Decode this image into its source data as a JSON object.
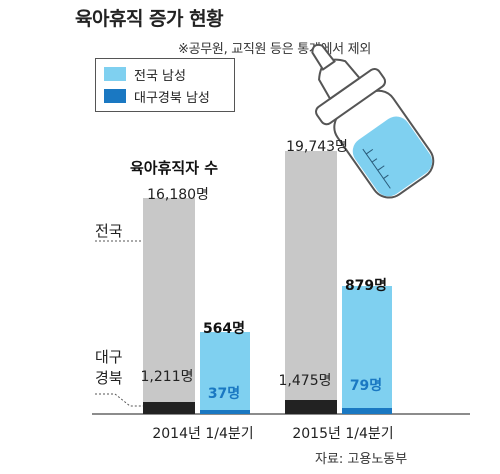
{
  "header": {
    "title": "육아휴직 증가 현황",
    "note": "※공무원, 교직원 등은 통계에서 제외"
  },
  "legend": [
    {
      "label": "전국 남성",
      "color": "#7fd0f0"
    },
    {
      "label": "대구경북 남성",
      "color": "#1a78c2"
    }
  ],
  "annotations": {
    "chart_label": "육아휴직자 수",
    "nation_label": "전국",
    "region_label_1": "대구",
    "region_label_2": "경북"
  },
  "source": "자료: 고용노동부",
  "colors": {
    "nation_gray": "#c8c8c8",
    "region_dark": "#222222",
    "national_male": "#7fd0f0",
    "region_male": "#1a78c2",
    "axis": "#666666"
  },
  "icon": "baby-bottle-icon",
  "chart_data": {
    "type": "bar",
    "categories": [
      "2014년 1/4분기",
      "2015년 1/4분기"
    ],
    "series": [
      {
        "name": "전국",
        "values": [
          16180,
          19743
        ],
        "labels": [
          "16,180명",
          "19,743명"
        ]
      },
      {
        "name": "대구경북",
        "values": [
          1211,
          1475
        ],
        "labels": [
          "1,211명",
          "1,475명"
        ]
      },
      {
        "name": "전국 남성",
        "values": [
          564,
          879
        ],
        "labels": [
          "564명",
          "879명"
        ]
      },
      {
        "name": "대구경북 남성",
        "values": [
          37,
          79
        ],
        "labels": [
          "37명",
          "79명"
        ]
      }
    ]
  }
}
